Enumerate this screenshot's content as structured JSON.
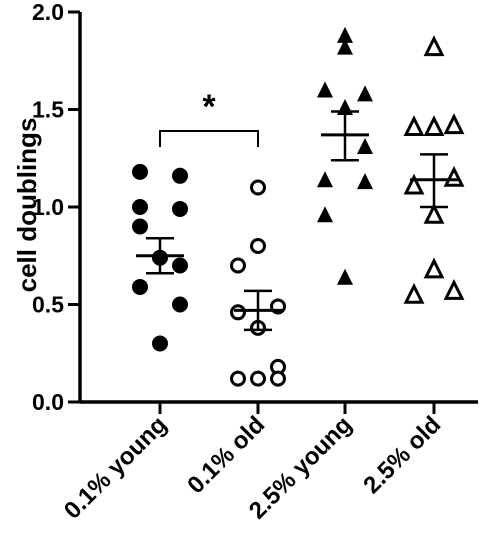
{
  "chart_data": {
    "type": "scatter",
    "ylabel": "cell doublings",
    "xlabel": "",
    "title": "",
    "ylim": [
      0,
      2.0
    ],
    "yticks": [
      "0.0",
      "0.5",
      "1.0",
      "1.5",
      "2.0"
    ],
    "categories": [
      "0.1% young",
      "0.1% old",
      "2.5% young",
      "2.5% old"
    ],
    "series": [
      {
        "marker": "filled-circle",
        "points": [
          1.18,
          1.16,
          1.0,
          0.99,
          0.9,
          0.74,
          0.7,
          0.59,
          0.5,
          0.3
        ],
        "mean": 0.75,
        "sem_low": 0.66,
        "sem_high": 0.84
      },
      {
        "marker": "open-circle",
        "points": [
          1.1,
          0.8,
          0.7,
          0.49,
          0.46,
          0.38,
          0.18,
          0.12,
          0.12,
          0.12
        ],
        "mean": 0.47,
        "sem_low": 0.37,
        "sem_high": 0.57
      },
      {
        "marker": "filled-triangle",
        "points": [
          1.88,
          1.82,
          1.6,
          1.58,
          1.51,
          1.31,
          1.14,
          1.13,
          0.96,
          0.64
        ],
        "mean": 1.37,
        "sem_low": 1.24,
        "sem_high": 1.49
      },
      {
        "marker": "open-triangle",
        "points": [
          1.82,
          1.41,
          1.41,
          1.42,
          1.11,
          1.15,
          0.96,
          0.68,
          0.55,
          0.57
        ],
        "mean": 1.14,
        "sem_low": 1.0,
        "sem_high": 1.27
      }
    ],
    "significance": [
      {
        "from": 0,
        "to": 1,
        "label": "*"
      }
    ]
  }
}
